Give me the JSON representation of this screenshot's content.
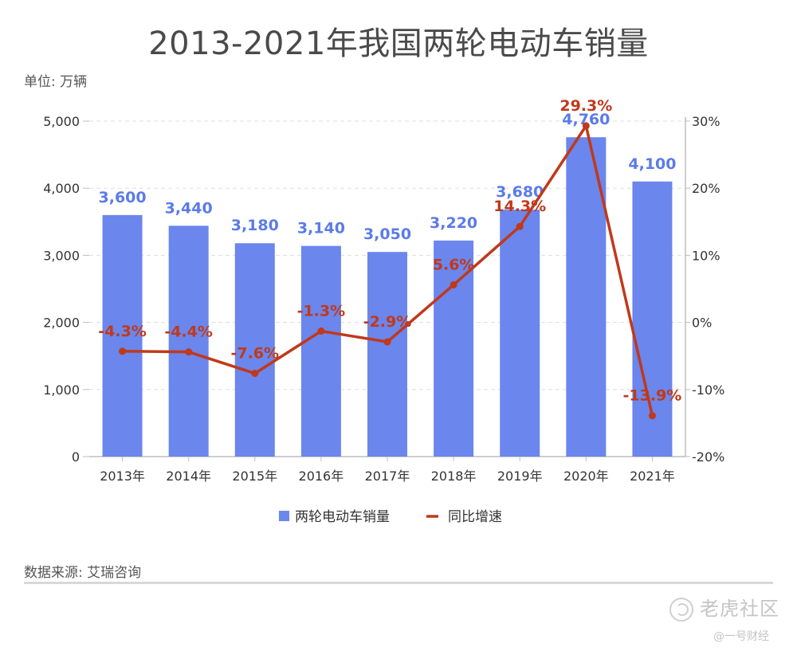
{
  "chart_data": {
    "type": "bar",
    "title": "2013-2021年我国两轮电动车销量",
    "unit_label": "单位: 万辆",
    "categories": [
      "2013年",
      "2014年",
      "2015年",
      "2016年",
      "2017年",
      "2018年",
      "2019年",
      "2020年",
      "2021年"
    ],
    "series": [
      {
        "name": "两轮电动车销量",
        "type": "bar",
        "axis": "left",
        "values": [
          3600,
          3440,
          3180,
          3140,
          3050,
          3220,
          3680,
          4760,
          4100
        ],
        "labels": [
          "3,600",
          "3,440",
          "3,180",
          "3,140",
          "3,050",
          "3,220",
          "3,680",
          "4,760",
          "4,100"
        ]
      },
      {
        "name": "同比增速",
        "type": "line",
        "axis": "right",
        "values": [
          -4.3,
          -4.4,
          -7.6,
          -1.3,
          -2.9,
          5.6,
          14.3,
          29.3,
          -13.9
        ],
        "labels": [
          "-4.3%",
          "-4.4%",
          "-7.6%",
          "-1.3%",
          "-2.9%",
          "5.6%",
          "14.3%",
          "29.3%",
          "-13.9%"
        ]
      }
    ],
    "y_left": {
      "ylim": [
        0,
        5000
      ],
      "ticks": [
        "0",
        "1,000",
        "2,000",
        "3,000",
        "4,000",
        "5,000"
      ],
      "tick_values": [
        0,
        1000,
        2000,
        3000,
        4000,
        5000
      ]
    },
    "y_right": {
      "ylim": [
        -20,
        30
      ],
      "ticks": [
        "-20%",
        "-10%",
        "0%",
        "10%",
        "20%",
        "30%"
      ],
      "tick_values": [
        -20,
        -10,
        0,
        10,
        20,
        30
      ]
    },
    "grid": true,
    "legend_position": "bottom-center",
    "source": "数据来源: 艾瑞咨询",
    "colors": {
      "bar": "#6b86ec",
      "line": "#c0391b",
      "bar_label": "#5b7be8",
      "grid": "#dddddd"
    }
  },
  "footer": {
    "brand": "老虎社区",
    "handle": "@一号财经"
  }
}
